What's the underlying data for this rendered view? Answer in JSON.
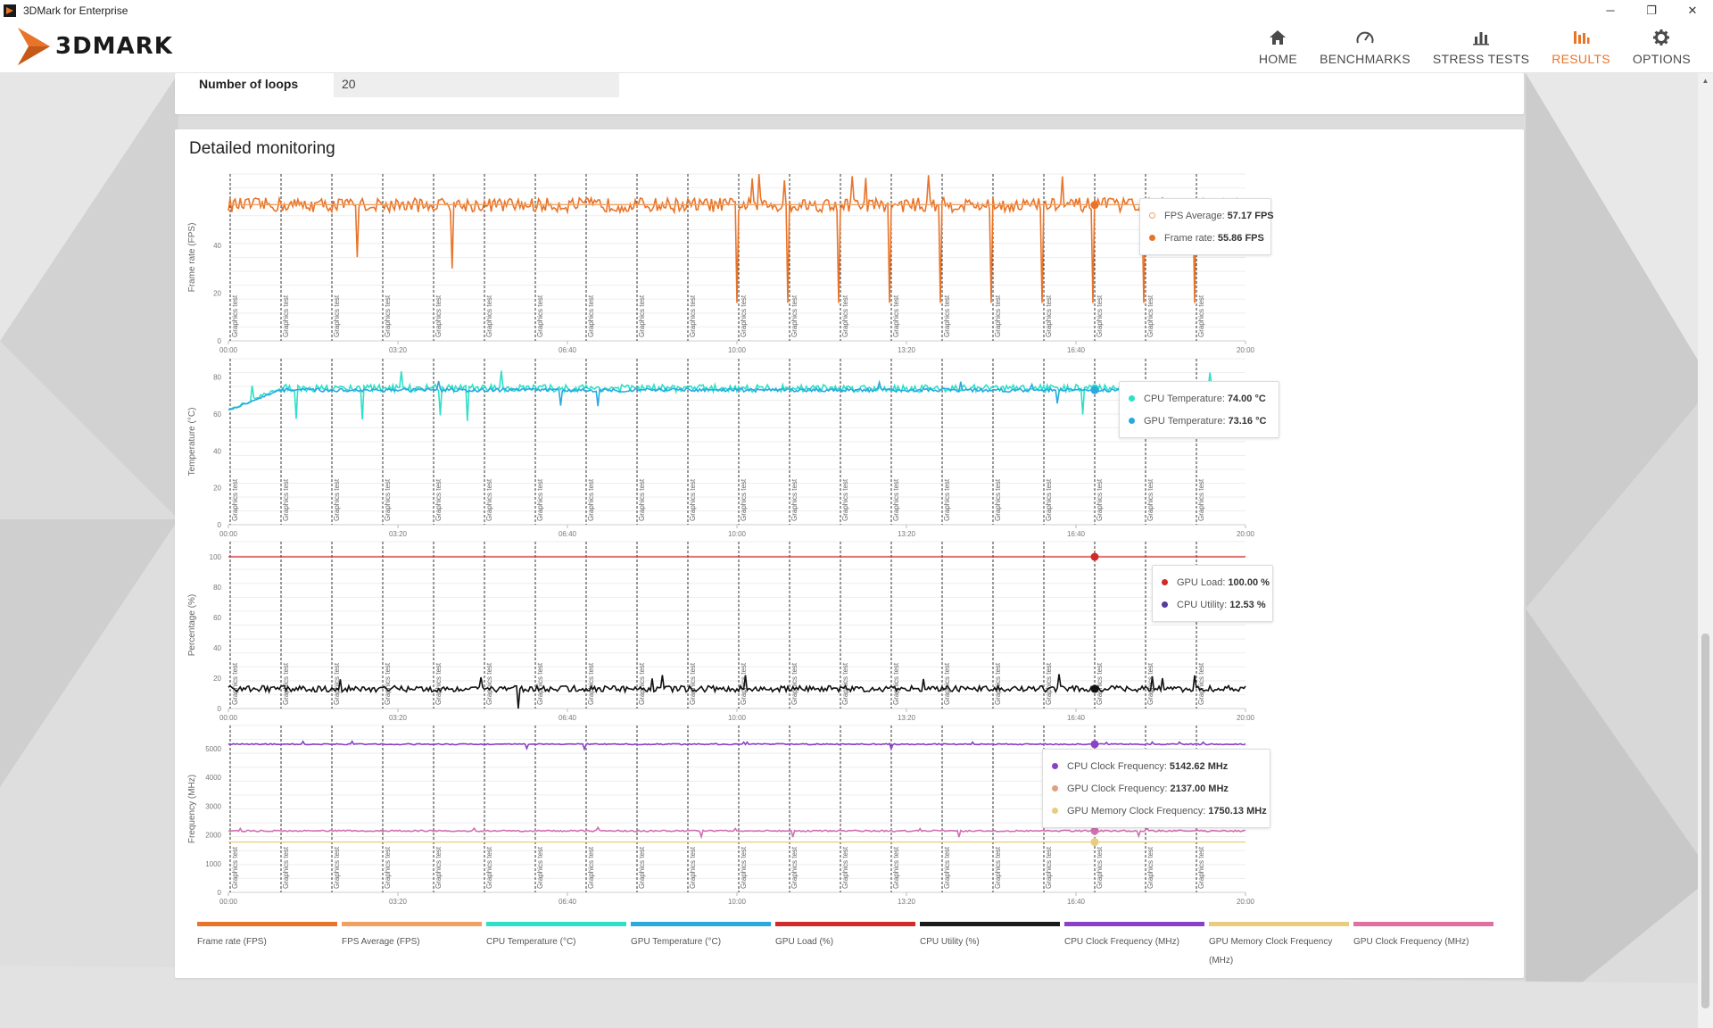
{
  "window": {
    "title": "3DMark for Enterprise",
    "minimize": "─",
    "maximize": "❐",
    "close": "✕"
  },
  "brand": {
    "name": "3DMARK",
    "accent": "#e8742a"
  },
  "nav": [
    {
      "id": "home",
      "label": "HOME",
      "icon": "home-icon"
    },
    {
      "id": "benchmarks",
      "label": "BENCHMARKS",
      "icon": "gauge-icon"
    },
    {
      "id": "stress",
      "label": "STRESS TESTS",
      "icon": "bar-chart-icon"
    },
    {
      "id": "results",
      "label": "RESULTS",
      "icon": "results-icon",
      "active": true
    },
    {
      "id": "options",
      "label": "OPTIONS",
      "icon": "gear-icon"
    }
  ],
  "settings": {
    "loops_label": "Number of loops",
    "loops_value": "20"
  },
  "monitoring": {
    "title": "Detailed monitoring",
    "marker_label": "Graphics test",
    "tooltips": {
      "fps": [
        {
          "label": "FPS Average:",
          "value": "57.17 FPS",
          "color": "#f0a060",
          "hollow": true
        },
        {
          "label": "Frame rate:",
          "value": "55.86 FPS",
          "color": "#e8742a"
        }
      ],
      "temp": [
        {
          "label": "CPU Temperature:",
          "value": "74.00 °C",
          "color": "#2ee0c8"
        },
        {
          "label": "GPU Temperature:",
          "value": "73.16 °C",
          "color": "#2aa8e0"
        }
      ],
      "load": [
        {
          "label": "GPU Load:",
          "value": "100.00 %",
          "color": "#d02a2a"
        },
        {
          "label": "CPU Utility:",
          "value": "12.53 %",
          "color": "#5a3a9a"
        }
      ],
      "freq": [
        {
          "label": "CPU Clock Frequency:",
          "value": "5142.62 MHz",
          "color": "#8a40c8"
        },
        {
          "label": "GPU Clock Frequency:",
          "value": "2137.00 MHz",
          "color": "#e0a080"
        },
        {
          "label": "GPU Memory Clock Frequency:",
          "value": "1750.13 MHz",
          "color": "#e8cc80"
        }
      ]
    },
    "legend": [
      {
        "label": "Frame rate (FPS)",
        "color": "#e8742a"
      },
      {
        "label": "FPS Average (FPS)",
        "color": "#f0a060"
      },
      {
        "label": "CPU Temperature (°C)",
        "color": "#2ee0c8"
      },
      {
        "label": "GPU Temperature (°C)",
        "color": "#2aa8e0"
      },
      {
        "label": "GPU Load (%)",
        "color": "#d02a2a"
      },
      {
        "label": "CPU Utility (%)",
        "color": "#1a1a1a"
      },
      {
        "label": "CPU Clock Frequency (MHz)",
        "color": "#8a40c8"
      },
      {
        "label": "GPU Memory Clock Frequency (MHz)",
        "color": "#e8cc80"
      },
      {
        "label": "GPU Clock Frequency (MHz)",
        "color": "#e070a0"
      }
    ]
  },
  "chart_data": [
    {
      "type": "line",
      "ylabel": "Frame rate (FPS)",
      "x_ticks": [
        "00:00",
        "03:20",
        "06:40",
        "10:00",
        "13:20",
        "16:40",
        "20:00"
      ],
      "y_ticks": [
        0,
        20,
        40
      ],
      "ylim": [
        0,
        70
      ],
      "xlim_seconds": [
        0,
        1200
      ],
      "series": [
        {
          "name": "Frame rate",
          "color": "#e8742a",
          "base": 57,
          "noise": 3,
          "drops_to": 16,
          "drop_loops": [
            11,
            12,
            13,
            14,
            15,
            16,
            17,
            18,
            19,
            20
          ]
        },
        {
          "name": "FPS Average",
          "color": "#f0a060",
          "constant": 57.17
        }
      ]
    },
    {
      "type": "line",
      "ylabel": "Temperature (°C)",
      "x_ticks": [
        "00:00",
        "03:20",
        "06:40",
        "10:00",
        "13:20",
        "16:40",
        "20:00"
      ],
      "y_ticks": [
        0,
        20,
        40,
        60,
        80
      ],
      "ylim": [
        0,
        90
      ],
      "series": [
        {
          "name": "CPU Temperature",
          "color": "#2ee0c8",
          "start": 62,
          "base": 74,
          "noise": 2
        },
        {
          "name": "GPU Temperature",
          "color": "#2aa8e0",
          "start": 62,
          "base": 73,
          "noise": 1
        }
      ]
    },
    {
      "type": "line",
      "ylabel": "Percentage (%)",
      "x_ticks": [
        "00:00",
        "03:20",
        "06:40",
        "10:00",
        "13:20",
        "16:40",
        "20:00"
      ],
      "y_ticks": [
        0,
        20,
        40,
        60,
        80,
        100
      ],
      "ylim": [
        0,
        110
      ],
      "series": [
        {
          "name": "GPU Load",
          "color": "#d02a2a",
          "constant": 100
        },
        {
          "name": "CPU Utility",
          "color": "#111111",
          "base": 13,
          "noise": 2
        }
      ]
    },
    {
      "type": "line",
      "ylabel": "Frequency (MHz)",
      "x_ticks": [
        "00:00",
        "03:20",
        "06:40",
        "10:00",
        "13:20",
        "16:40",
        "20:00"
      ],
      "y_ticks": [
        0,
        1000,
        2000,
        3000,
        4000,
        5000
      ],
      "ylim": [
        0,
        5800
      ],
      "series": [
        {
          "name": "CPU Clock Frequency",
          "color": "#8a40c8",
          "base": 5150,
          "noise": 20
        },
        {
          "name": "GPU Clock Frequency",
          "color": "#d070b0",
          "base": 2137,
          "noise": 25
        },
        {
          "name": "GPU Memory Clock Frequency",
          "color": "#e8cc80",
          "constant": 1750
        }
      ]
    }
  ]
}
